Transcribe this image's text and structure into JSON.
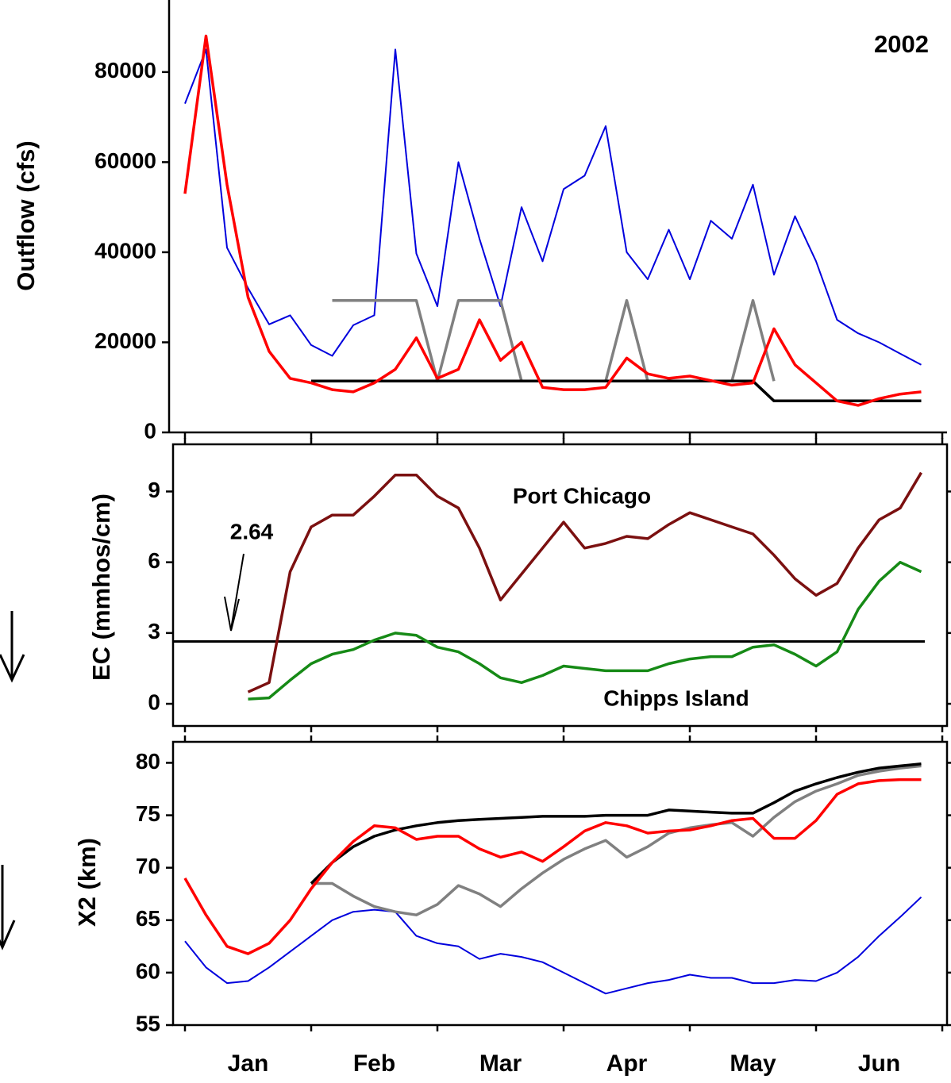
{
  "chart_data": [
    {
      "type": "line",
      "title": "2002",
      "ylabel": "Outflow (cfs)",
      "ylim": [
        0,
        96000
      ],
      "yticks": [
        0,
        20000,
        40000,
        60000,
        80000
      ],
      "series": [
        {
          "color": "#0000dd",
          "values": [
            73000,
            85000,
            41000,
            32000,
            24000,
            26000,
            19400,
            17000,
            23800,
            26000,
            85000,
            39700,
            28000,
            60000,
            43000,
            28000,
            50000,
            38000,
            54000,
            57000,
            68000,
            40000,
            34000,
            45000,
            34000,
            47000,
            43000,
            55000,
            35000,
            48000,
            38000,
            25000,
            22000,
            20000,
            17500,
            15000
          ]
        },
        {
          "color": "#808080",
          "values": [
            null,
            null,
            null,
            null,
            null,
            null,
            null,
            29300,
            29300,
            29300,
            29300,
            29300,
            11400,
            29300,
            29300,
            29300,
            11400,
            11400,
            11400,
            11400,
            11400,
            29300,
            11400,
            11400,
            11400,
            11400,
            11400,
            29300,
            11400,
            null,
            null,
            null,
            null,
            null,
            null,
            null
          ]
        },
        {
          "color": "#000000",
          "values": [
            null,
            null,
            null,
            null,
            null,
            null,
            11400,
            11400,
            11400,
            11400,
            11400,
            11400,
            11400,
            11400,
            11400,
            11400,
            11400,
            11400,
            11400,
            11400,
            11400,
            11400,
            11400,
            11400,
            11400,
            11400,
            11400,
            11400,
            7000,
            7000,
            7000,
            7000,
            7000,
            7000,
            7000,
            7000
          ]
        },
        {
          "color": "#ff0000",
          "values": [
            53000,
            88000,
            55000,
            30000,
            18000,
            12000,
            11000,
            9500,
            9000,
            11000,
            14000,
            21000,
            12000,
            14000,
            25000,
            16000,
            20000,
            10000,
            9500,
            9500,
            10000,
            16500,
            13000,
            12000,
            12500,
            11500,
            10500,
            11000,
            23000,
            15000,
            11000,
            7000,
            6000,
            7500,
            8500,
            9000
          ]
        }
      ]
    },
    {
      "type": "line",
      "ylabel": "EC (mmhos/cm)",
      "ylim": [
        -0.94,
        11
      ],
      "yticks": [
        0,
        3,
        6,
        9
      ],
      "threshold": 2.64,
      "series": [
        {
          "name": "Port Chicago",
          "color": "#7b1010",
          "values": [
            null,
            null,
            null,
            0.5,
            0.9,
            5.6,
            7.5,
            8.0,
            8.0,
            8.8,
            9.7,
            9.7,
            8.8,
            8.3,
            6.6,
            4.4,
            5.5,
            6.6,
            7.7,
            6.6,
            6.8,
            7.1,
            7.0,
            7.6,
            8.1,
            7.8,
            7.5,
            7.2,
            6.3,
            5.3,
            4.6,
            5.1,
            6.6,
            7.8,
            8.3,
            9.8
          ]
        },
        {
          "name": "Chipps Island",
          "color": "#168a16",
          "values": [
            null,
            null,
            null,
            0.2,
            0.25,
            1.0,
            1.7,
            2.1,
            2.3,
            2.7,
            3.0,
            2.9,
            2.4,
            2.2,
            1.7,
            1.1,
            0.9,
            1.2,
            1.6,
            1.5,
            1.4,
            1.4,
            1.4,
            1.7,
            1.9,
            2.0,
            2.0,
            2.4,
            2.5,
            2.1,
            1.6,
            2.2,
            4.0,
            5.2,
            6.0,
            5.6
          ]
        }
      ]
    },
    {
      "type": "line",
      "ylabel": "X2 (km)",
      "ylim": [
        55,
        82
      ],
      "yticks": [
        55,
        60,
        65,
        70,
        75,
        80
      ],
      "x": [
        null,
        null,
        null,
        "Jan",
        null,
        null,
        null,
        null,
        null,
        "Feb",
        null,
        null,
        null,
        null,
        null,
        "Mar",
        null,
        null,
        null,
        null,
        null,
        "Apr",
        null,
        null,
        null,
        null,
        null,
        "May",
        null,
        null,
        null,
        null,
        null,
        "Jun",
        null,
        null
      ],
      "series": [
        {
          "color": "#0000dd",
          "values": [
            63,
            60.5,
            59,
            59.2,
            60.5,
            62,
            63.5,
            65,
            65.8,
            66,
            65.8,
            63.5,
            62.8,
            62.5,
            61.3,
            61.8,
            61.5,
            61,
            60,
            59,
            58,
            58.5,
            59,
            59.3,
            59.8,
            59.5,
            59.5,
            59,
            59,
            59.3,
            59.2,
            60,
            61.5,
            63.5,
            65.3,
            67.2
          ]
        },
        {
          "color": "#808080",
          "values": [
            null,
            null,
            null,
            null,
            null,
            null,
            68.5,
            68.5,
            67.3,
            66.3,
            65.8,
            65.5,
            66.5,
            68.3,
            67.5,
            66.3,
            68,
            69.5,
            70.8,
            71.8,
            72.6,
            71,
            72,
            73.3,
            73.8,
            74.1,
            74.3,
            73,
            74.8,
            76.3,
            77.3,
            78,
            78.8,
            79.2,
            79.5,
            79.7
          ]
        },
        {
          "color": "#000000",
          "values": [
            null,
            null,
            null,
            null,
            null,
            null,
            68.5,
            70.5,
            72,
            73,
            73.6,
            74,
            74.3,
            74.5,
            74.6,
            74.7,
            74.8,
            74.9,
            74.9,
            74.9,
            75,
            75,
            75,
            75.5,
            75.4,
            75.3,
            75.2,
            75.2,
            76.2,
            77.3,
            78,
            78.6,
            79.1,
            79.5,
            79.7,
            79.9
          ]
        },
        {
          "color": "#ff0000",
          "values": [
            69,
            65.5,
            62.5,
            61.8,
            62.8,
            65,
            68,
            70.5,
            72.5,
            74,
            73.8,
            72.7,
            73,
            73,
            71.8,
            71,
            71.5,
            70.6,
            72,
            73.5,
            74.3,
            74,
            73.3,
            73.5,
            73.6,
            74,
            74.5,
            74.7,
            72.8,
            72.8,
            74.5,
            77,
            78,
            78.3,
            78.4,
            78.4
          ]
        }
      ]
    }
  ]
}
